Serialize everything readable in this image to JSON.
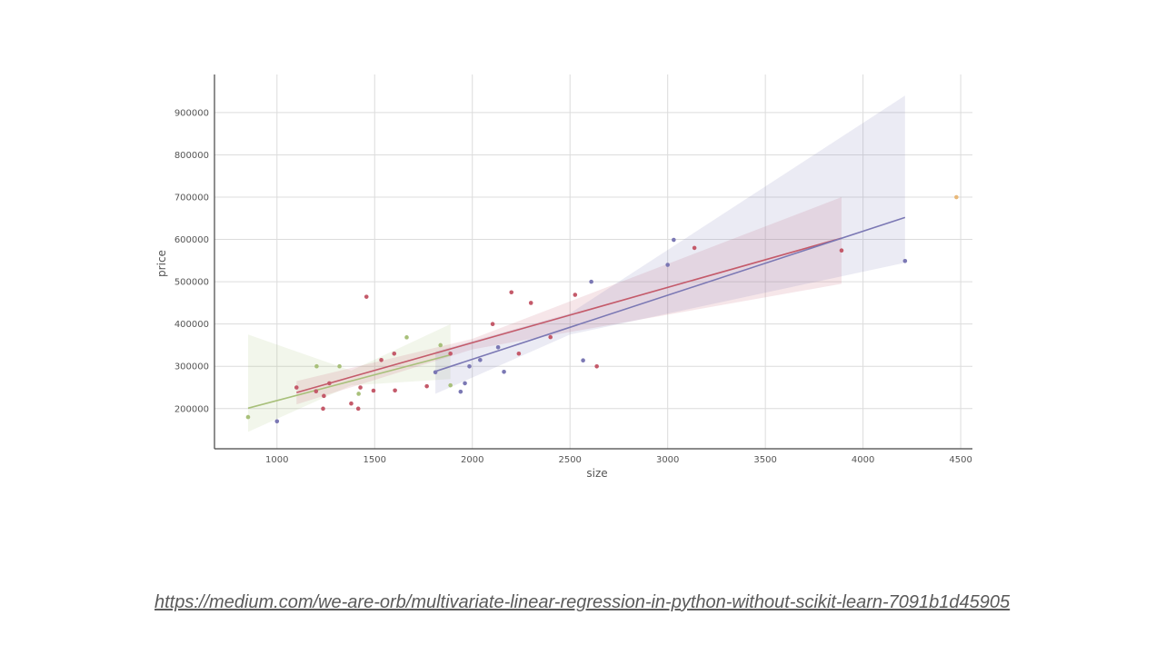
{
  "source_link": "https://medium.com/we-are-orb/multivariate-linear-regression-in-python-without-scikit-learn-7091b1d45905",
  "chart_data": {
    "type": "scatter",
    "xlabel": "size",
    "ylabel": "price",
    "xlim": [
      680,
      4560
    ],
    "ylim": [
      105000,
      990000
    ],
    "grid": true,
    "x_ticks": [
      1000,
      1500,
      2000,
      2500,
      3000,
      3500,
      4000,
      4500
    ],
    "y_ticks": [
      200000,
      300000,
      400000,
      500000,
      600000,
      700000,
      800000,
      900000
    ],
    "x_tick_labels": [
      "1000",
      "1500",
      "2000",
      "2500",
      "3000",
      "3500",
      "4000",
      "4500"
    ],
    "y_tick_labels": [
      "200000",
      "300000",
      "400000",
      "500000",
      "600000",
      "700000",
      "800000",
      "900000"
    ],
    "series": [
      {
        "color": "#a8c07a",
        "points": [
          [
            852,
            180000
          ],
          [
            1203,
            300000
          ],
          [
            1320,
            300000
          ],
          [
            1418,
            235000
          ],
          [
            1664,
            368500
          ],
          [
            1837,
            350000
          ],
          [
            1888,
            255000
          ]
        ],
        "fit": {
          "x0": 852,
          "y0": 201000,
          "x1": 1888,
          "y1": 327000
        },
        "band": {
          "x0": 852,
          "lo0": 145000,
          "hi0": 375000,
          "xm": 1380,
          "lom": 255000,
          "him": 290000,
          "x1": 1888,
          "lo1": 270000,
          "hi1": 400000
        }
      },
      {
        "color": "#c45a6a",
        "points": [
          [
            1100,
            249900
          ],
          [
            1200,
            241000
          ],
          [
            1236,
            199900
          ],
          [
            1240,
            229900
          ],
          [
            1268,
            259900
          ],
          [
            1380,
            212000
          ],
          [
            1416,
            199900
          ],
          [
            1427,
            249900
          ],
          [
            1458,
            464500
          ],
          [
            1494,
            242500
          ],
          [
            1534,
            314900
          ],
          [
            1600,
            329900
          ],
          [
            1604,
            242900
          ],
          [
            1767,
            252900
          ],
          [
            1888,
            329900
          ],
          [
            2104,
            399900
          ],
          [
            2200,
            475000
          ],
          [
            2238,
            329999
          ],
          [
            2300,
            449900
          ],
          [
            2400,
            369000
          ],
          [
            2526,
            469000
          ],
          [
            2637,
            299900
          ],
          [
            3137,
            579900
          ],
          [
            3890,
            573900
          ]
        ],
        "fit": {
          "x0": 1100,
          "y0": 238000,
          "x1": 3890,
          "y1": 603000
        },
        "band": {
          "x0": 1100,
          "lo0": 210000,
          "hi0": 265000,
          "xm": 2000,
          "lom": 340000,
          "him": 365000,
          "x1": 3890,
          "lo1": 495000,
          "hi1": 700000
        }
      },
      {
        "color": "#7b78b4",
        "points": [
          [
            1000,
            169900
          ],
          [
            1811,
            285900
          ],
          [
            1940,
            239999
          ],
          [
            1962,
            259900
          ],
          [
            1985,
            299900
          ],
          [
            2040,
            314900
          ],
          [
            2132,
            345000
          ],
          [
            2162,
            287000
          ],
          [
            2567,
            314000
          ],
          [
            2609,
            499998
          ],
          [
            3000,
            539900
          ],
          [
            3031,
            599000
          ],
          [
            4215,
            549000
          ]
        ],
        "fit": {
          "x0": 1811,
          "y0": 288000,
          "x1": 4215,
          "y1": 652000
        },
        "band": {
          "x0": 1811,
          "lo0": 235000,
          "hi0": 335000,
          "xm": 2500,
          "lom": 375000,
          "him": 425000,
          "x1": 4215,
          "lo1": 545000,
          "hi1": 940000
        }
      },
      {
        "color": "#e8b87a",
        "points": [
          [
            4478,
            699900
          ]
        ]
      }
    ]
  }
}
